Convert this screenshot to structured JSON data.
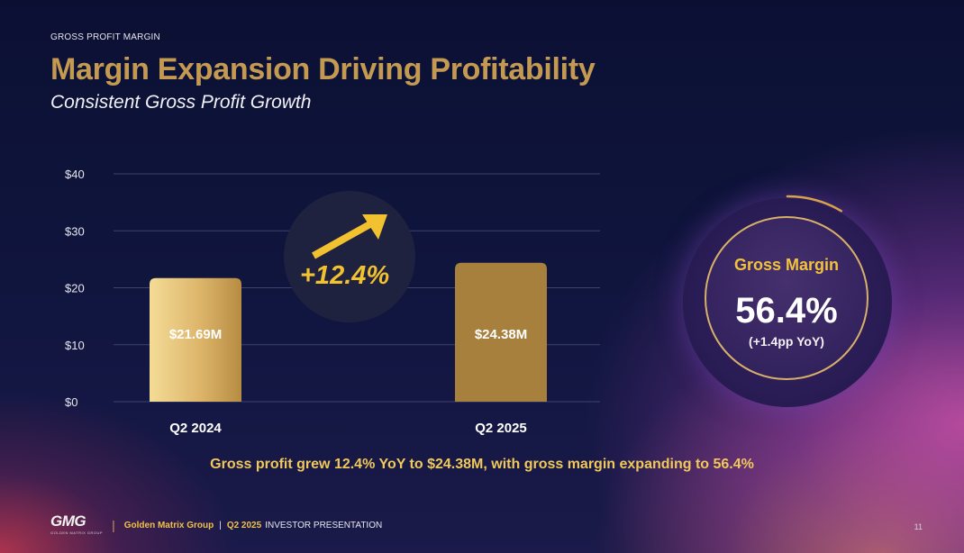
{
  "eyebrow": "GROSS PROFIT MARGIN",
  "title": "Margin Expansion Driving Profitability",
  "subtitle": "Consistent Gross Profit Growth",
  "growth_badge": {
    "text": "+12.4%"
  },
  "gross_margin": {
    "label": "Gross Margin",
    "value": "56.4%",
    "change": "(+1.4pp YoY)",
    "fraction": 0.564
  },
  "caption": "Gross profit grew 12.4% YoY to $24.38M, with gross margin expanding to 56.4%",
  "footer": {
    "logo": "GMG",
    "logo_sub": "GOLDEN MATRIX GROUP",
    "company": "Golden Matrix Group",
    "period": "Q2 2025",
    "doc": "INVESTOR PRESENTATION",
    "page": "11"
  },
  "chart_data": {
    "type": "bar",
    "title": "",
    "xlabel": "",
    "ylabel": "",
    "categories": [
      "Q2 2024",
      "Q2 2025"
    ],
    "values": [
      21.69,
      24.38
    ],
    "value_labels": [
      "$21.69M",
      "$24.38M"
    ],
    "y_ticks": [
      0,
      10,
      20,
      30,
      40
    ],
    "y_tick_labels": [
      "$0",
      "$10",
      "$20",
      "$30",
      "$40"
    ],
    "ylim": [
      0,
      40
    ],
    "grid": true
  },
  "colors": {
    "gold": "#c49a52",
    "bar1_light": "#f3d78e",
    "bar1_dark": "#b98f45",
    "bar2": "#a7803d",
    "accent": "#f2c130"
  }
}
